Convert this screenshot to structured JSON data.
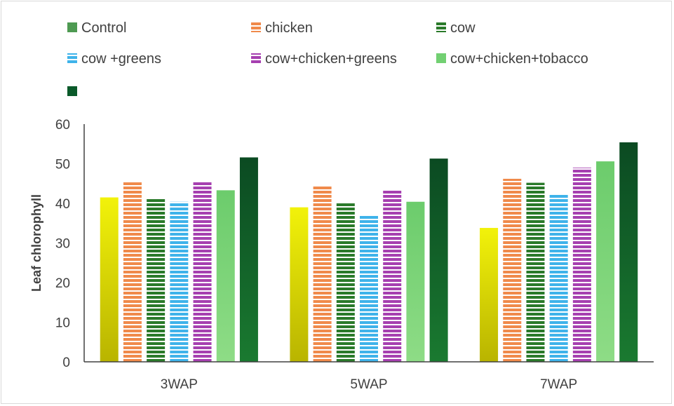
{
  "chart_data": {
    "type": "bar",
    "title": "",
    "xlabel": "",
    "ylabel": "Leaf chlorophyll",
    "ylim": [
      0,
      60
    ],
    "yticks": [
      0,
      10,
      20,
      30,
      40,
      50,
      60
    ],
    "categories": [
      "3WAP",
      "5WAP",
      "7WAP"
    ],
    "grid": false,
    "legend_position": "top",
    "series": [
      {
        "name": "Control",
        "values": [
          41.5,
          39.0,
          33.8
        ]
      },
      {
        "name": "chicken",
        "values": [
          45.3,
          44.5,
          46.2
        ]
      },
      {
        "name": "cow",
        "values": [
          41.2,
          40.2,
          45.2
        ]
      },
      {
        "name": "cow +greens",
        "values": [
          40.4,
          37.1,
          42.3
        ]
      },
      {
        "name": "cow+chicken+greens",
        "values": [
          45.5,
          43.2,
          49.0
        ]
      },
      {
        "name": "cow+chicken+tobacco",
        "values": [
          43.3,
          40.4,
          50.6
        ]
      },
      {
        "values": [
          51.6,
          51.3,
          55.4
        ]
      }
    ],
    "colors": {
      "Control_legend": "#4e9a52",
      "Control_bar_top": "#f2f20a",
      "Control_bar_bottom": "#b9b400",
      "chicken": "#f08a4b",
      "cow": "#2a7a2a",
      "cow +greens": "#3fb3ea",
      "cow+chicken+greens": "#a640b0",
      "cow+chicken+tobacco": "#72d072",
      "unnamed": "#0a5a2a",
      "stripe": "#ffffff",
      "axis": "#404040"
    },
    "patterns": [
      "gradient",
      "h-stripes",
      "h-stripes",
      "h-stripes",
      "h-stripes",
      "solid",
      "solid"
    ]
  }
}
